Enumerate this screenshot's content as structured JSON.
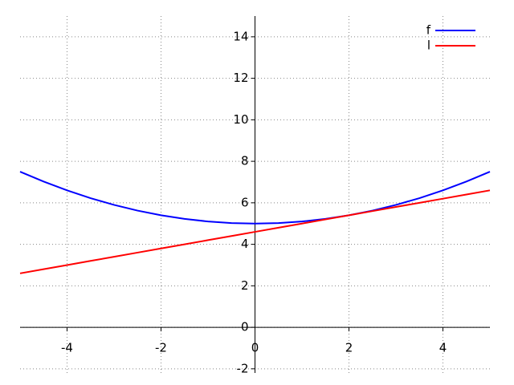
{
  "chart_data": {
    "type": "line",
    "x": [
      -5,
      -4.5,
      -4,
      -3.5,
      -3,
      -2.5,
      -2,
      -1.5,
      -1,
      -0.5,
      0,
      0.5,
      1,
      1.5,
      2,
      2.5,
      3,
      3.5,
      4,
      4.5,
      5
    ],
    "series": [
      {
        "name": "f",
        "color": "#0000ff",
        "values": [
          7.5,
          7.025,
          6.6,
          6.225,
          5.9,
          5.625,
          5.4,
          5.225,
          5.1,
          5.025,
          5,
          5.025,
          5.1,
          5.225,
          5.4,
          5.625,
          5.9,
          6.225,
          6.6,
          7.025,
          7.5
        ]
      },
      {
        "name": "l",
        "color": "#ff0000",
        "values": [
          2.6,
          2.8,
          3.0,
          3.2,
          3.4,
          3.6,
          3.8,
          4.0,
          4.2,
          4.4,
          4.6,
          4.8,
          5.0,
          5.2,
          5.4,
          5.6,
          5.8,
          6.0,
          6.2,
          6.4,
          6.6
        ]
      }
    ],
    "xlim": [
      -5,
      5
    ],
    "ylim": [
      -2.2,
      15
    ],
    "xticks": [
      -4,
      -2,
      0,
      2,
      4
    ],
    "yticks": [
      -2,
      0,
      2,
      4,
      6,
      8,
      10,
      12,
      14
    ],
    "grid": true,
    "legend": "upper-right"
  }
}
